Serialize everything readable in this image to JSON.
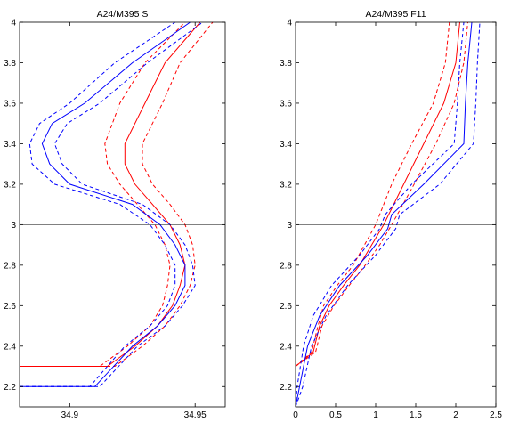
{
  "colors": {
    "series_a": "#ff0000",
    "series_b": "#0000ff",
    "reference_line": "#000000"
  },
  "chart_data": [
    {
      "type": "line",
      "title": "A24/M395 S",
      "xlabel": "",
      "ylabel": "",
      "xlim": [
        34.88,
        34.962
      ],
      "ylim": [
        2.1,
        4.0
      ],
      "xticks": [
        34.9,
        34.95
      ],
      "yticks": [
        2.2,
        2.4,
        2.6,
        2.8,
        3.0,
        3.2,
        3.4,
        3.6,
        3.8,
        4.0
      ],
      "xtick_labels": [
        "34.9",
        "34.95"
      ],
      "ytick_labels": [
        "2.2",
        "2.4",
        "2.6",
        "2.8",
        "3",
        "3.2",
        "3.4",
        "3.6",
        "3.8",
        "4"
      ],
      "reference_line": {
        "orientation": "horizontal",
        "y": 3.0
      },
      "grid": false,
      "series": [
        {
          "color": "red",
          "style": "solid",
          "x": [
            34.88,
            34.915,
            34.926,
            34.935,
            34.941,
            34.944,
            34.946,
            34.944,
            34.94,
            34.933,
            34.926,
            34.922,
            34.922,
            34.93,
            34.938,
            34.952
          ],
          "y": [
            2.3,
            2.3,
            2.4,
            2.5,
            2.6,
            2.7,
            2.8,
            2.9,
            3.0,
            3.1,
            3.2,
            3.3,
            3.4,
            3.6,
            3.8,
            4.0
          ]
        },
        {
          "color": "red",
          "style": "dashed",
          "x": [
            34.88,
            34.912,
            34.923,
            34.932,
            34.937,
            34.939,
            34.94,
            34.938,
            34.934,
            34.927,
            34.92,
            34.915,
            34.914,
            34.92,
            34.93,
            34.946
          ],
          "y": [
            2.3,
            2.3,
            2.4,
            2.5,
            2.6,
            2.7,
            2.8,
            2.9,
            3.0,
            3.1,
            3.2,
            3.3,
            3.4,
            3.6,
            3.8,
            4.0
          ]
        },
        {
          "color": "red",
          "style": "dashed",
          "x": [
            34.88,
            34.918,
            34.929,
            34.938,
            34.944,
            34.948,
            34.95,
            34.949,
            34.946,
            34.94,
            34.933,
            34.929,
            34.929,
            34.937,
            34.944,
            34.957
          ],
          "y": [
            2.3,
            2.3,
            2.4,
            2.5,
            2.6,
            2.7,
            2.8,
            2.9,
            3.0,
            3.1,
            3.2,
            3.3,
            3.4,
            3.6,
            3.8,
            4.0
          ]
        },
        {
          "color": "blue",
          "style": "solid",
          "x": [
            34.88,
            34.91,
            34.925,
            34.935,
            34.942,
            34.946,
            34.946,
            34.942,
            34.936,
            34.925,
            34.9,
            34.892,
            34.889,
            34.893,
            34.906,
            34.925,
            34.948
          ],
          "y": [
            2.2,
            2.2,
            2.4,
            2.5,
            2.6,
            2.7,
            2.8,
            2.9,
            3.0,
            3.1,
            3.2,
            3.3,
            3.4,
            3.5,
            3.6,
            3.8,
            4.0
          ]
        },
        {
          "color": "blue",
          "style": "dashed",
          "x": [
            34.88,
            34.908,
            34.922,
            34.932,
            34.939,
            34.942,
            34.942,
            34.938,
            34.932,
            34.92,
            34.894,
            34.885,
            34.884,
            34.888,
            34.9,
            34.918,
            34.942
          ],
          "y": [
            2.2,
            2.2,
            2.4,
            2.5,
            2.6,
            2.7,
            2.8,
            2.9,
            3.0,
            3.1,
            3.2,
            3.3,
            3.4,
            3.5,
            3.6,
            3.8,
            4.0
          ]
        },
        {
          "color": "blue",
          "style": "dashed",
          "x": [
            34.88,
            34.912,
            34.927,
            34.938,
            34.945,
            34.95,
            34.949,
            34.946,
            34.94,
            34.929,
            34.905,
            34.897,
            34.894,
            34.899,
            34.912,
            34.931,
            34.953
          ],
          "y": [
            2.2,
            2.2,
            2.4,
            2.5,
            2.6,
            2.7,
            2.8,
            2.9,
            3.0,
            3.1,
            3.2,
            3.3,
            3.4,
            3.5,
            3.6,
            3.8,
            4.0
          ]
        }
      ]
    },
    {
      "type": "line",
      "title": "A24/M395 F11",
      "xlabel": "",
      "ylabel": "",
      "xlim": [
        0,
        2.5
      ],
      "ylim": [
        2.1,
        4.0
      ],
      "xticks": [
        0,
        0.5,
        1,
        1.5,
        2,
        2.5
      ],
      "yticks": [
        2.2,
        2.4,
        2.6,
        2.8,
        3.0,
        3.2,
        3.4,
        3.6,
        3.8,
        4.0
      ],
      "xtick_labels": [
        "0",
        "0.5",
        "1",
        "1.5",
        "2",
        "2.5"
      ],
      "ytick_labels": [
        "2.2",
        "2.4",
        "2.6",
        "2.8",
        "3",
        "3.2",
        "3.4",
        "3.6",
        "3.8",
        "4"
      ],
      "reference_line": {
        "orientation": "horizontal",
        "y": 3.0
      },
      "grid": false,
      "series": [
        {
          "color": "red",
          "style": "solid",
          "x": [
            0.0,
            0.22,
            0.3,
            0.42,
            0.6,
            0.8,
            0.95,
            1.1,
            1.35,
            1.6,
            1.85,
            2.0,
            2.05
          ],
          "y": [
            2.3,
            2.37,
            2.5,
            2.6,
            2.7,
            2.8,
            2.9,
            3.0,
            3.2,
            3.4,
            3.6,
            3.8,
            4.0
          ]
        },
        {
          "color": "red",
          "style": "dashed",
          "x": [
            0.0,
            0.2,
            0.28,
            0.35,
            0.52,
            0.72,
            0.86,
            1.0,
            1.2,
            1.45,
            1.72,
            1.87,
            1.92
          ],
          "y": [
            2.3,
            2.37,
            2.5,
            2.6,
            2.7,
            2.8,
            2.9,
            3.0,
            3.2,
            3.4,
            3.6,
            3.8,
            4.0
          ]
        },
        {
          "color": "red",
          "style": "dashed",
          "x": [
            0.0,
            0.25,
            0.33,
            0.48,
            0.67,
            0.87,
            1.05,
            1.2,
            1.48,
            1.75,
            1.98,
            2.1,
            2.15
          ],
          "y": [
            2.3,
            2.37,
            2.5,
            2.6,
            2.7,
            2.8,
            2.9,
            3.0,
            3.2,
            3.4,
            3.6,
            3.8,
            4.0
          ]
        },
        {
          "color": "blue",
          "style": "solid",
          "x": [
            0.0,
            0.05,
            0.15,
            0.3,
            0.55,
            0.9,
            1.15,
            1.2,
            1.6,
            2.1,
            2.12,
            2.15,
            2.2
          ],
          "y": [
            2.1,
            2.2,
            2.4,
            2.55,
            2.7,
            2.85,
            2.98,
            3.05,
            3.2,
            3.4,
            3.6,
            3.8,
            4.0
          ]
        },
        {
          "color": "blue",
          "style": "dashed",
          "x": [
            0.0,
            0.02,
            0.1,
            0.22,
            0.45,
            0.8,
            1.05,
            1.12,
            1.45,
            1.98,
            2.02,
            2.05,
            2.1
          ],
          "y": [
            2.1,
            2.2,
            2.4,
            2.55,
            2.7,
            2.85,
            2.98,
            3.05,
            3.2,
            3.4,
            3.6,
            3.8,
            4.0
          ]
        },
        {
          "color": "blue",
          "style": "dashed",
          "x": [
            0.0,
            0.09,
            0.2,
            0.38,
            0.65,
            1.0,
            1.25,
            1.3,
            1.8,
            2.22,
            2.25,
            2.27,
            2.3
          ],
          "y": [
            2.1,
            2.2,
            2.4,
            2.55,
            2.7,
            2.85,
            2.98,
            3.05,
            3.2,
            3.4,
            3.6,
            3.8,
            4.0
          ]
        }
      ]
    }
  ]
}
